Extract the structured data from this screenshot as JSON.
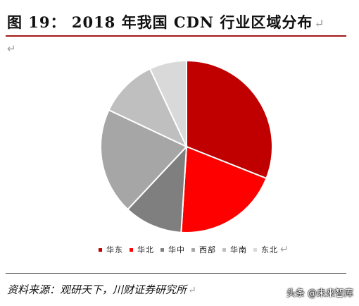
{
  "figure": {
    "title": "图 19： 2018 年我国 CDN 行业区域分布",
    "return_mark": "↵",
    "source": "资料来源：观研天下，川财证券研究所"
  },
  "watermark": {
    "text": "头条 @未来智库"
  },
  "chart_data": {
    "type": "pie",
    "start_angle_deg": 0,
    "direction": "clockwise",
    "slices": [
      {
        "label": "华东",
        "value": 31,
        "color": "#c00000"
      },
      {
        "label": "华北",
        "value": 20,
        "color": "#ff0000"
      },
      {
        "label": "华中",
        "value": 11,
        "color": "#7f7f7f"
      },
      {
        "label": "西部",
        "value": 20,
        "color": "#a6a6a6"
      },
      {
        "label": "华南",
        "value": 11,
        "color": "#bfbfbf"
      },
      {
        "label": "东北",
        "value": 7,
        "color": "#d9d9d9"
      }
    ],
    "legend_position": "bottom"
  }
}
